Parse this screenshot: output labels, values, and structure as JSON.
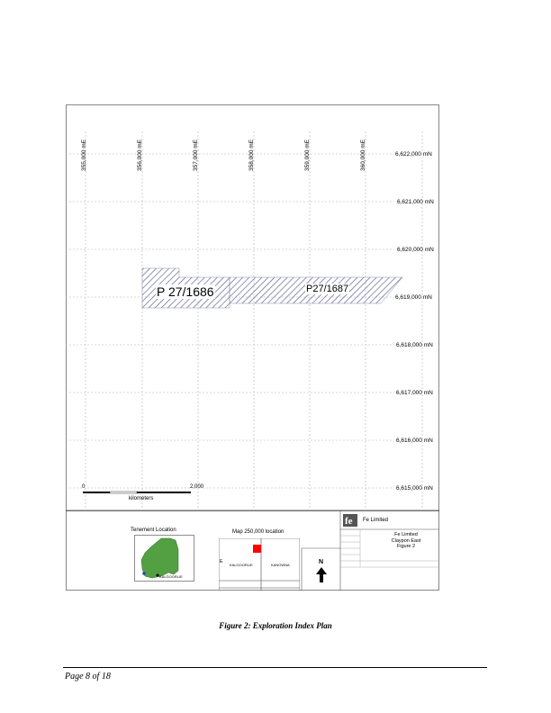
{
  "map": {
    "eastings": [
      "355,000 mE",
      "356,000 mE",
      "357,000 mE",
      "358,000 mE",
      "359,000 mE",
      "360,000 mE"
    ],
    "northings": [
      "6,622,000 mN",
      "6,621,000 mN",
      "6,620,000 mN",
      "6,619,000 mN",
      "6,618,000 mN",
      "6,617,000 mN",
      "6,616,000 mN",
      "6,615,000 mN"
    ],
    "tenements": [
      "P  27/1686",
      "P27/1687"
    ],
    "hatch_color": "#5a5a8c",
    "scale": {
      "start": "0",
      "end": "2,000",
      "unit": "kilometers"
    }
  },
  "legend": {
    "tenement_location_title": "Tenement Location",
    "tenement_town": "KALGOORLIE",
    "map250_title": "Map 250,000 location",
    "map250_left": "KALGOORLIE",
    "map250_right": "KANOWNA",
    "map250_edge": "E",
    "north": "N",
    "sheet_marker_color": "#ff0000",
    "company_logo": "fe",
    "company_name": "Fe Limited",
    "title_block": [
      "Fe Limited",
      "Claypon East",
      "Figure 2"
    ]
  },
  "caption": "Figure 2: Exploration Index Plan",
  "page_number": "Page 8 of 18"
}
